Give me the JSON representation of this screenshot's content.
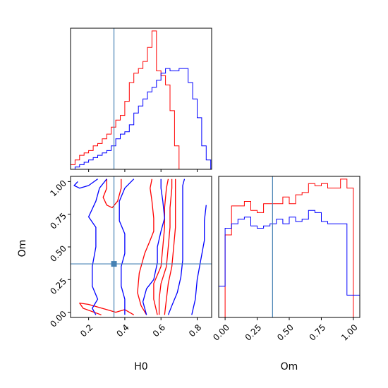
{
  "figure": {
    "type": "corner-plot",
    "parameters": [
      "H0",
      "Om"
    ],
    "colors": {
      "sample_a": "#ff0000",
      "sample_b": "#0000ff",
      "truth": "#4682b4"
    }
  },
  "labels": {
    "x_bottom_left": "H0",
    "x_bottom_right": "Om",
    "y_left": "Om"
  },
  "chart_data": [
    {
      "type": "histogram",
      "panel": "H0 marginal",
      "xlim": [
        0.1,
        0.88
      ],
      "ticks_x": [
        0.2,
        0.4,
        0.6,
        0.8
      ],
      "truth": 0.34,
      "series": [
        {
          "color": "#ff0000",
          "edges": [
            0.1,
            0.125,
            0.15,
            0.175,
            0.2,
            0.225,
            0.25,
            0.275,
            0.3,
            0.325,
            0.35,
            0.375,
            0.4,
            0.425,
            0.45,
            0.475,
            0.5,
            0.525,
            0.55,
            0.575,
            0.6,
            0.625,
            0.65,
            0.675,
            0.7
          ],
          "values": [
            2,
            4,
            6,
            7,
            8,
            10,
            11,
            13,
            15,
            18,
            21,
            23,
            29,
            37,
            41,
            43,
            46,
            52,
            59,
            42,
            40,
            36,
            25,
            10
          ]
        },
        {
          "color": "#0000ff",
          "edges": [
            0.125,
            0.15,
            0.175,
            0.2,
            0.225,
            0.25,
            0.275,
            0.3,
            0.325,
            0.35,
            0.375,
            0.4,
            0.425,
            0.45,
            0.475,
            0.5,
            0.525,
            0.55,
            0.575,
            0.6,
            0.625,
            0.65,
            0.675,
            0.7,
            0.725,
            0.75,
            0.775,
            0.8,
            0.825,
            0.85,
            0.875
          ],
          "values": [
            1,
            2,
            3,
            4,
            5,
            6,
            7,
            8,
            10,
            13,
            15,
            16,
            19,
            24,
            27,
            30,
            33,
            35,
            38,
            41,
            43,
            42,
            42,
            43,
            43,
            37,
            30,
            22,
            10,
            4
          ]
        }
      ]
    },
    {
      "type": "contour",
      "panel": "H0 vs Om",
      "xlabel": "H0",
      "ylabel": "Om",
      "xlim": [
        0.1,
        0.88
      ],
      "ylim": [
        -0.04,
        1.04
      ],
      "ticks_x": [
        0.2,
        0.4,
        0.6,
        0.8
      ],
      "ticks_y": [
        0.0,
        0.25,
        0.5,
        0.75,
        1.0
      ],
      "tick_labels_x": [
        "0.2",
        "0.4",
        "0.6",
        "0.8"
      ],
      "tick_labels_y": [
        "0.00",
        "0.25",
        "0.50",
        "0.75",
        "1.00"
      ],
      "truth": {
        "H0": 0.34,
        "Om": 0.37
      },
      "series": [
        {
          "color": "#ff0000",
          "contours": [
            [
              [
                0.58,
                -0.02
              ],
              [
                0.56,
                0.1
              ],
              [
                0.56,
                0.22
              ],
              [
                0.6,
                0.35
              ],
              [
                0.61,
                0.5
              ],
              [
                0.62,
                0.65
              ],
              [
                0.62,
                0.8
              ],
              [
                0.63,
                0.95
              ],
              [
                0.64,
                1.02
              ]
            ],
            [
              [
                0.59,
                -0.02
              ],
              [
                0.59,
                0.1
              ],
              [
                0.6,
                0.22
              ],
              [
                0.63,
                0.35
              ],
              [
                0.64,
                0.5
              ],
              [
                0.65,
                0.65
              ],
              [
                0.65,
                0.8
              ],
              [
                0.66,
                0.95
              ],
              [
                0.66,
                1.02
              ]
            ],
            [
              [
                0.62,
                -0.02
              ],
              [
                0.63,
                0.1
              ],
              [
                0.64,
                0.22
              ],
              [
                0.66,
                0.35
              ],
              [
                0.67,
                0.5
              ],
              [
                0.68,
                0.65
              ],
              [
                0.68,
                0.8
              ],
              [
                0.68,
                0.95
              ],
              [
                0.68,
                1.02
              ]
            ],
            [
              [
                0.52,
                -0.02
              ],
              [
                0.49,
                0.05
              ],
              [
                0.47,
                0.15
              ],
              [
                0.48,
                0.3
              ],
              [
                0.51,
                0.45
              ],
              [
                0.54,
                0.55
              ],
              [
                0.56,
                0.62
              ],
              [
                0.56,
                0.72
              ],
              [
                0.55,
                0.85
              ],
              [
                0.54,
                0.95
              ],
              [
                0.55,
                1.02
              ]
            ],
            [
              [
                0.3,
                1.02
              ],
              [
                0.3,
                0.95
              ],
              [
                0.28,
                0.88
              ],
              [
                0.3,
                0.82
              ],
              [
                0.33,
                0.8
              ],
              [
                0.36,
                0.85
              ],
              [
                0.38,
                0.95
              ],
              [
                0.38,
                1.02
              ]
            ],
            [
              [
                0.27,
                -0.02
              ],
              [
                0.17,
                0.03
              ],
              [
                0.15,
                0.07
              ],
              [
                0.2,
                0.06
              ],
              [
                0.3,
                0.02
              ],
              [
                0.35,
                0.0
              ],
              [
                0.4,
                0.02
              ],
              [
                0.45,
                -0.02
              ]
            ]
          ]
        },
        {
          "color": "#0000ff",
          "contours": [
            [
              [
                0.64,
                -0.02
              ],
              [
                0.66,
                0.05
              ],
              [
                0.69,
                0.15
              ],
              [
                0.71,
                0.27
              ],
              [
                0.72,
                0.4
              ],
              [
                0.72,
                0.55
              ],
              [
                0.72,
                0.7
              ],
              [
                0.72,
                0.85
              ],
              [
                0.72,
                0.97
              ],
              [
                0.73,
                1.02
              ]
            ],
            [
              [
                0.77,
                -0.02
              ],
              [
                0.79,
                0.1
              ],
              [
                0.8,
                0.25
              ],
              [
                0.82,
                0.4
              ],
              [
                0.84,
                0.55
              ],
              [
                0.84,
                0.7
              ],
              [
                0.85,
                0.82
              ]
            ],
            [
              [
                0.52,
                -0.02
              ],
              [
                0.5,
                0.08
              ],
              [
                0.52,
                0.18
              ],
              [
                0.56,
                0.25
              ],
              [
                0.58,
                0.38
              ],
              [
                0.58,
                0.5
              ],
              [
                0.6,
                0.62
              ],
              [
                0.62,
                0.72
              ],
              [
                0.61,
                0.85
              ],
              [
                0.6,
                0.95
              ],
              [
                0.6,
                1.02
              ]
            ],
            [
              [
                0.14,
                1.0
              ],
              [
                0.12,
                0.97
              ],
              [
                0.15,
                0.95
              ],
              [
                0.2,
                0.97
              ],
              [
                0.25,
                1.02
              ]
            ],
            [
              [
                0.3,
                1.02
              ],
              [
                0.26,
                0.95
              ],
              [
                0.24,
                0.85
              ],
              [
                0.2,
                0.73
              ],
              [
                0.24,
                0.65
              ],
              [
                0.24,
                0.5
              ],
              [
                0.22,
                0.35
              ],
              [
                0.22,
                0.2
              ],
              [
                0.25,
                0.1
              ],
              [
                0.22,
                0.03
              ],
              [
                0.24,
                -0.02
              ]
            ],
            [
              [
                0.45,
                1.02
              ],
              [
                0.4,
                0.95
              ],
              [
                0.37,
                0.85
              ],
              [
                0.37,
                0.7
              ],
              [
                0.4,
                0.6
              ],
              [
                0.4,
                0.45
              ],
              [
                0.38,
                0.35
              ],
              [
                0.38,
                0.2
              ],
              [
                0.4,
                0.1
              ],
              [
                0.4,
                -0.02
              ]
            ]
          ]
        }
      ]
    },
    {
      "type": "histogram",
      "panel": "Om marginal",
      "xlabel": "Om",
      "xlim": [
        -0.05,
        1.05
      ],
      "ticks_x": [
        0.0,
        0.25,
        0.5,
        0.75,
        1.0
      ],
      "tick_labels_x": [
        "0.00",
        "0.25",
        "0.50",
        "0.75",
        "1.00"
      ],
      "truth": 0.37,
      "series": [
        {
          "color": "#ff0000",
          "edges": [
            0.0,
            0.05,
            0.1,
            0.15,
            0.2,
            0.25,
            0.3,
            0.35,
            0.4,
            0.45,
            0.5,
            0.55,
            0.6,
            0.65,
            0.7,
            0.75,
            0.8,
            0.85,
            0.9,
            0.95,
            1.0
          ],
          "values": [
            37,
            50,
            50,
            52,
            48,
            47,
            51,
            51,
            51,
            54,
            51,
            55,
            56,
            60,
            59,
            60,
            58,
            58,
            62,
            58
          ]
        },
        {
          "color": "#0000ff",
          "edges": [
            -0.05,
            0.0,
            0.05,
            0.1,
            0.15,
            0.2,
            0.25,
            0.3,
            0.35,
            0.4,
            0.45,
            0.5,
            0.55,
            0.6,
            0.65,
            0.7,
            0.75,
            0.8,
            0.85,
            0.9,
            0.95,
            1.0,
            1.05
          ],
          "values": [
            14,
            40,
            42,
            44,
            45,
            41,
            40,
            41,
            42,
            44,
            42,
            45,
            43,
            44,
            48,
            47,
            43,
            42,
            42,
            42,
            10,
            10
          ]
        }
      ]
    }
  ]
}
